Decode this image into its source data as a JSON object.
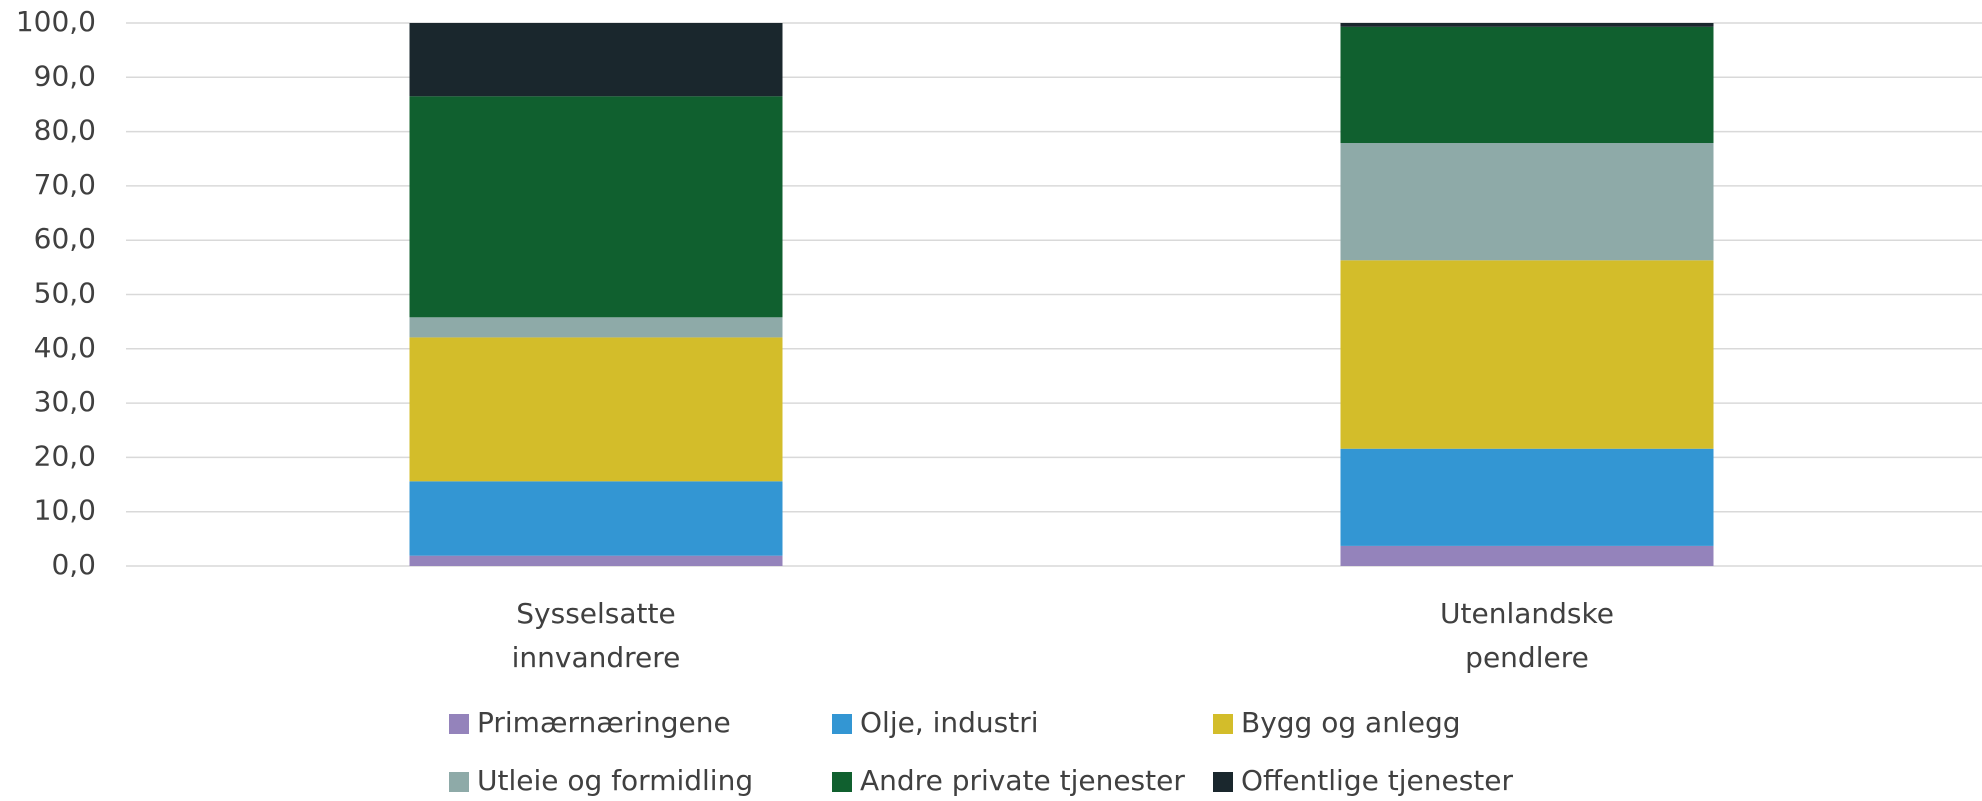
{
  "chart_data": {
    "type": "stacked_bar",
    "categories": [
      "Sysselsatte innvandrere",
      "Utenlandske pendlere"
    ],
    "series": [
      {
        "name": "Primærnæringene",
        "color": "#9483bb",
        "values": [
          1.9,
          3.7
        ]
      },
      {
        "name": "Olje, industri",
        "color": "#3396d3",
        "values": [
          13.7,
          17.9
        ]
      },
      {
        "name": "Bygg og anlegg",
        "color": "#d3bd2a",
        "values": [
          26.5,
          34.7
        ]
      },
      {
        "name": "Utleie og formidling",
        "color": "#8eaaa8",
        "values": [
          3.7,
          21.6
        ]
      },
      {
        "name": "Andre private tjenester",
        "color": "#10602f",
        "values": [
          40.7,
          21.4
        ]
      },
      {
        "name": "Offentlige tjenester",
        "color": "#1a272d",
        "values": [
          13.5,
          0.7
        ]
      }
    ],
    "ylim": [
      0,
      100
    ],
    "yticks": [
      {
        "value": 0,
        "label": "0,0"
      },
      {
        "value": 10,
        "label": "10,0"
      },
      {
        "value": 20,
        "label": "20,0"
      },
      {
        "value": 30,
        "label": "30,0"
      },
      {
        "value": 40,
        "label": "40,0"
      },
      {
        "value": 50,
        "label": "50,0"
      },
      {
        "value": 60,
        "label": "60,0"
      },
      {
        "value": 70,
        "label": "70,0"
      },
      {
        "value": 80,
        "label": "80,0"
      },
      {
        "value": 90,
        "label": "90,0"
      },
      {
        "value": 100,
        "label": "100,0"
      }
    ],
    "grid": true,
    "legend": "bottom"
  }
}
